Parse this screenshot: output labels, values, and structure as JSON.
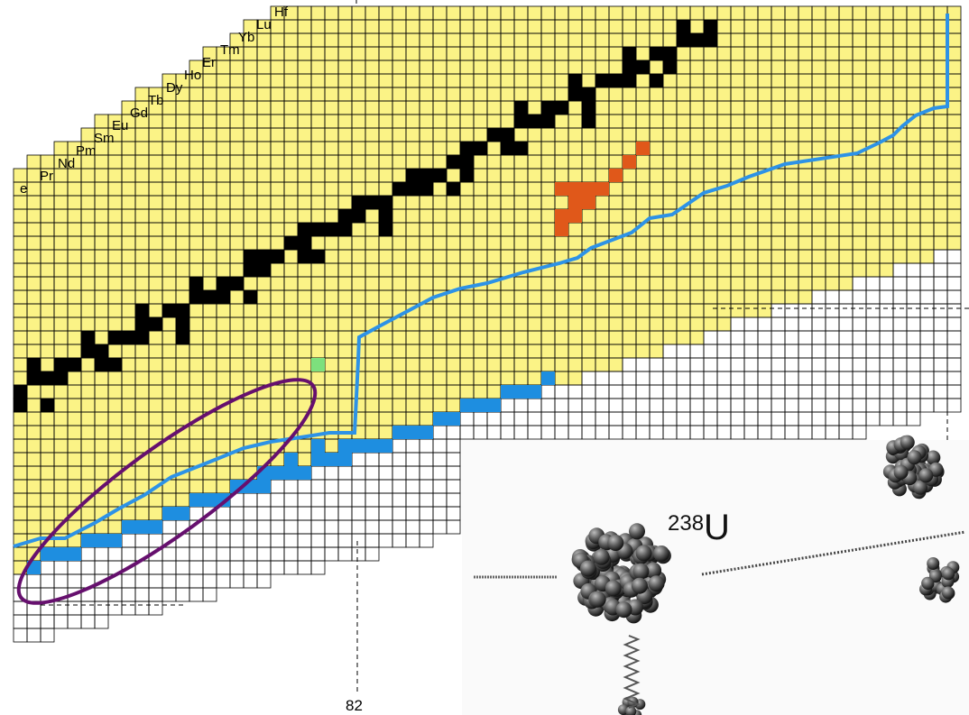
{
  "element_labels": [
    "e",
    "Pr",
    "Nd",
    "Pm",
    "Sm",
    "Eu",
    "Gd",
    "Tb",
    "Dy",
    "Ho",
    "Er",
    "Tm",
    "Yb",
    "Lu",
    "Hf"
  ],
  "magic_number": "82",
  "fission": {
    "mass_number": "238",
    "symbol": "U"
  },
  "colors": {
    "known": "#fbf386",
    "stable": "#000000",
    "grid": "#000000",
    "r_process": "#1e8ee0",
    "r_process_path": "#2d92e6",
    "green": "#7de07d",
    "orange": "#e0581a",
    "ellipse": "#66106e",
    "dashed": "#000000"
  },
  "icons": {
    "fission_photo": "fission-nuclei-illustration"
  }
}
